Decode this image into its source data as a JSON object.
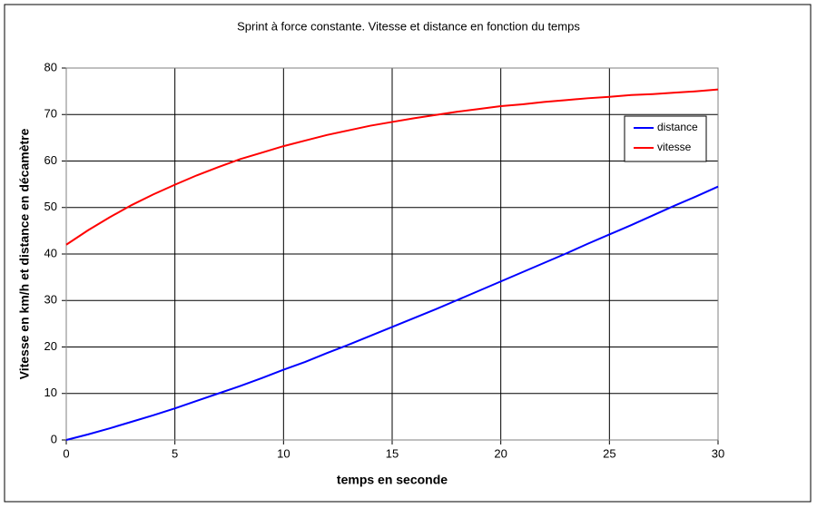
{
  "chart_data": {
    "type": "line",
    "title": "Sprint à force constante. Vitesse et distance en fonction du temps",
    "x_label": "temps en seconde",
    "y_label": "Vitesse en km/h et distance en décamètre",
    "x": [
      0,
      1,
      2,
      3,
      4,
      5,
      6,
      7,
      8,
      9,
      10,
      11,
      12,
      13,
      14,
      15,
      16,
      17,
      18,
      19,
      20,
      21,
      22,
      23,
      24,
      25,
      26,
      27,
      28,
      29,
      30
    ],
    "series": [
      {
        "name": "distance",
        "color": "#0000ff",
        "values": [
          0,
          1.2,
          2.5,
          3.9,
          5.3,
          6.8,
          8.4,
          10.0,
          11.6,
          13.3,
          15.1,
          16.8,
          18.7,
          20.5,
          22.4,
          24.3,
          26.2,
          28.1,
          30.1,
          32.1,
          34.1,
          36.1,
          38.1,
          40.1,
          42.2,
          44.2,
          46.2,
          48.3,
          50.4,
          52.4,
          54.5
        ]
      },
      {
        "name": "vitesse",
        "color": "#ff0000",
        "values": [
          42,
          45.1,
          47.9,
          50.5,
          52.8,
          54.9,
          56.9,
          58.7,
          60.4,
          61.8,
          63.2,
          64.4,
          65.6,
          66.6,
          67.6,
          68.4,
          69.2,
          69.9,
          70.6,
          71.2,
          71.8,
          72.2,
          72.7,
          73.1,
          73.5,
          73.8,
          74.2,
          74.4,
          74.7,
          75.0,
          75.4
        ]
      }
    ],
    "xlim": [
      0,
      30
    ],
    "xticks": [
      0,
      5,
      10,
      15,
      20,
      25,
      30
    ],
    "ylim": [
      0,
      80
    ],
    "yticks": [
      0,
      10,
      20,
      30,
      40,
      50,
      60,
      70,
      80
    ],
    "grid": true,
    "legend": "upper right"
  }
}
